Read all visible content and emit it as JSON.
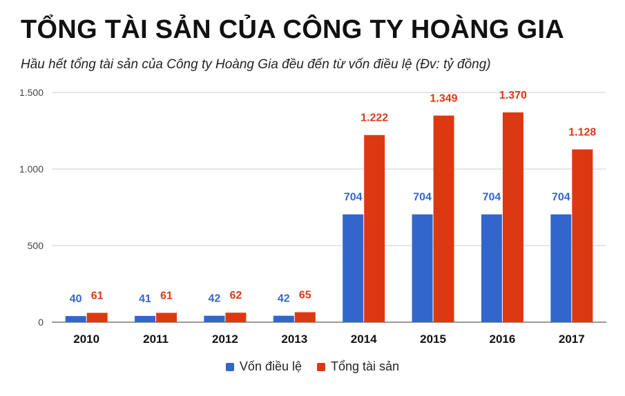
{
  "header": {
    "title": "TỔNG TÀI SẢN CỦA CÔNG TY HOÀNG GIA",
    "subtitle": "Hầu hết tổng tài sản của Công ty Hoàng Gia đều đến từ vốn điều lệ (Đv: tỷ đồng)"
  },
  "chart_data": {
    "type": "bar",
    "title": "TỔNG TÀI SẢN CỦA CÔNG TY HOÀNG GIA",
    "subtitle": "Hầu hết tổng tài sản của Công ty Hoàng Gia đều đến từ vốn điều lệ (Đv: tỷ đồng)",
    "categories": [
      "2010",
      "2011",
      "2012",
      "2013",
      "2014",
      "2015",
      "2016",
      "2017"
    ],
    "series": [
      {
        "name": "Vốn điều lệ",
        "color": "#3366cc",
        "values": [
          40,
          41,
          42,
          42,
          704,
          704,
          704,
          704
        ],
        "labels": [
          "40",
          "41",
          "42",
          "42",
          "704",
          "704",
          "704",
          "704"
        ]
      },
      {
        "name": "Tổng tài sản",
        "color": "#dc3912",
        "values": [
          61,
          61,
          62,
          65,
          1222,
          1349,
          1370,
          1128
        ],
        "labels": [
          "61",
          "61",
          "62",
          "65",
          "1.222",
          "1.349",
          "1.370",
          "1.128"
        ]
      }
    ],
    "ylim": [
      0,
      1500
    ],
    "yticks": [
      0,
      500,
      1000,
      1500
    ],
    "ytick_labels": [
      "0",
      "500",
      "1.000",
      "1.500"
    ],
    "grid": true,
    "legend_position": "bottom"
  }
}
